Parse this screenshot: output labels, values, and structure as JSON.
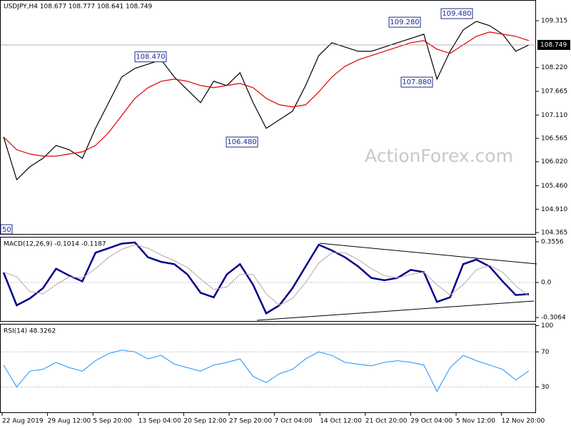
{
  "chart_data": [
    {
      "type": "line",
      "title": "USDJPY,H4  108.677 108.777 108.641 108.749",
      "ylim": [
        104.332,
        109.715
      ],
      "yticks": [
        104.365,
        {
          "value": 104.91,
          "label": "104.910"
        },
        {
          "value": 105.46,
          "label": "105.460"
        },
        {
          "value": 106.02,
          "label": "106.020"
        },
        106.565,
        {
          "value": 107.11,
          "label": "107.110"
        },
        107.665,
        {
          "value": 108.22,
          "label": "108.220"
        },
        109.315
      ],
      "last_price": {
        "value": 108.749,
        "label": "108.749"
      },
      "annotations": [
        {
          "value": 108.47,
          "label": "108.470"
        },
        {
          "value": 106.48,
          "label": "106.480"
        },
        {
          "value": 109.28,
          "label": "109.280"
        },
        {
          "value": 107.88,
          "label": "107.880"
        },
        {
          "value": 109.48,
          "label": "109.480"
        }
      ],
      "left_edge_label": "50",
      "watermark": "ActionForex.com",
      "series": [
        {
          "name": "USDJPY",
          "color": "#000000",
          "values": [
            106.6,
            105.6,
            105.9,
            106.1,
            106.4,
            106.3,
            106.1,
            106.8,
            107.4,
            108.0,
            108.2,
            108.3,
            108.4,
            108.0,
            107.7,
            107.4,
            107.9,
            107.8,
            108.1,
            107.4,
            106.8,
            107.0,
            107.2,
            107.8,
            108.5,
            108.8,
            108.7,
            108.6,
            108.6,
            108.7,
            108.8,
            108.9,
            109.0,
            107.95,
            108.6,
            109.1,
            109.3,
            109.2,
            109.0,
            108.6,
            108.75
          ]
        },
        {
          "name": "MA",
          "color": "#e00000",
          "values": [
            106.6,
            106.3,
            106.2,
            106.15,
            106.15,
            106.2,
            106.25,
            106.4,
            106.7,
            107.1,
            107.5,
            107.75,
            107.9,
            107.95,
            107.9,
            107.8,
            107.75,
            107.8,
            107.85,
            107.75,
            107.5,
            107.35,
            107.3,
            107.35,
            107.65,
            108.0,
            108.25,
            108.4,
            108.5,
            108.6,
            108.7,
            108.8,
            108.85,
            108.65,
            108.55,
            108.75,
            108.95,
            109.05,
            109.0,
            108.95,
            108.85
          ]
        }
      ]
    },
    {
      "type": "line",
      "title": "MACD(12,26,9) -0.1014 -0.1187",
      "ylim": [
        -0.337,
        0.399
      ],
      "yticks": [
        0.3556,
        {
          "value": 0,
          "label": "0.0"
        },
        -0.3064
      ],
      "grid": [
        1
      ],
      "series": [
        {
          "name": "MACD",
          "color": "#00008b",
          "width": 2.5,
          "values": [
            0.087,
            -0.2,
            -0.14,
            -0.05,
            0.12,
            0.06,
            0.01,
            0.26,
            0.3,
            0.34,
            0.35,
            0.22,
            0.18,
            0.16,
            0.07,
            -0.09,
            -0.13,
            0.07,
            0.16,
            -0.02,
            -0.27,
            -0.2,
            -0.05,
            0.14,
            0.33,
            0.28,
            0.22,
            0.14,
            0.04,
            0.02,
            0.04,
            0.11,
            0.09,
            -0.17,
            -0.13,
            0.16,
            0.2,
            0.14,
            0.01,
            -0.11,
            -0.1014
          ]
        },
        {
          "name": "Signal",
          "color": "#b8a8a8",
          "width": 1,
          "values": [
            0.09,
            0.05,
            -0.08,
            -0.1,
            -0.02,
            0.05,
            0.04,
            0.12,
            0.22,
            0.29,
            0.33,
            0.3,
            0.24,
            0.19,
            0.13,
            0.03,
            -0.06,
            -0.04,
            0.07,
            0.07,
            -0.1,
            -0.2,
            -0.14,
            0.0,
            0.17,
            0.26,
            0.26,
            0.2,
            0.12,
            0.06,
            0.04,
            0.07,
            0.09,
            -0.02,
            -0.11,
            -0.02,
            0.11,
            0.15,
            0.09,
            -0.03,
            -0.1187
          ]
        }
      ]
    },
    {
      "type": "line",
      "title": "RSI(14) 48.3262",
      "ylim": [
        1,
        102
      ],
      "yticks": [
        100,
        70,
        30
      ],
      "grid": [
        1,
        2
      ],
      "series": [
        {
          "name": "RSI",
          "color": "#1e90ff",
          "width": 1,
          "values": [
            55,
            30,
            48,
            50,
            58,
            52,
            48,
            60,
            68,
            72,
            70,
            62,
            66,
            56,
            52,
            48,
            55,
            58,
            62,
            42,
            35,
            45,
            50,
            62,
            70,
            66,
            58,
            56,
            54,
            58,
            60,
            58,
            55,
            25,
            52,
            66,
            60,
            55,
            50,
            38,
            48.3262
          ]
        }
      ]
    }
  ],
  "x_axis_labels": [
    "22 Aug 2019",
    "29 Aug 12:00",
    "5 Sep 20:00",
    "13 Sep 04:00",
    "20 Sep 12:00",
    "27 Sep 20:00",
    "7 Oct 04:00",
    "14 Oct 12:00",
    "21 Oct 20:00",
    "29 Oct 04:00",
    "5 Nov 12:00",
    "12 Nov 20:00"
  ]
}
